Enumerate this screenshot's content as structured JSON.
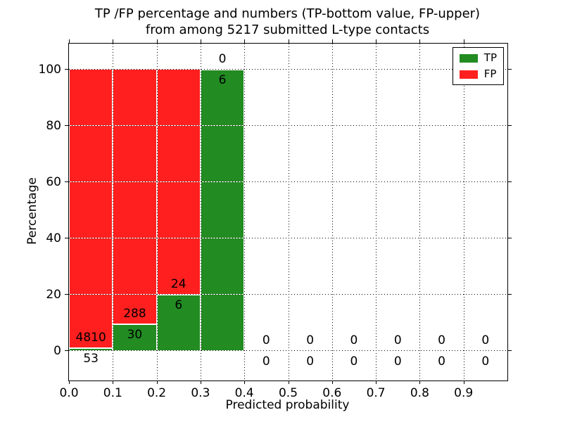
{
  "figure": {
    "title_line1": "TP /FP percentage and numbers (TP-bottom value, FP-upper)",
    "title_line2": "from among 5217 submitted L-type contacts"
  },
  "chart_data": {
    "type": "bar",
    "stacked": true,
    "title": "TP /FP percentage and numbers (TP-bottom value, FP-upper)\nfrom among 5217 submitted L-type contacts",
    "xlabel": "Predicted probability",
    "ylabel": "Percentage",
    "xlim": [
      0.0,
      1.0
    ],
    "ylim": [
      -10.5,
      109.5
    ],
    "x_ticks": [
      "0.0",
      "0.1",
      "0.2",
      "0.3",
      "0.4",
      "0.5",
      "0.6",
      "0.7",
      "0.8",
      "0.9"
    ],
    "y_ticks": [
      "0",
      "20",
      "40",
      "60",
      "80",
      "100"
    ],
    "grid": true,
    "grid_style": "dotted",
    "legend_position": "upper right",
    "total_contacts": 5217,
    "legend": [
      {
        "name": "TP",
        "label": "TP",
        "color": "#228b22"
      },
      {
        "name": "FP",
        "label": "FP",
        "color": "#ff1f1f"
      }
    ],
    "bins": [
      {
        "range": [
          0.0,
          0.1
        ],
        "tp_count": 53,
        "fp_count": 4810,
        "tp_pct": 1.09,
        "fp_pct": 98.91
      },
      {
        "range": [
          0.1,
          0.2
        ],
        "tp_count": 30,
        "fp_count": 288,
        "tp_pct": 9.43,
        "fp_pct": 90.57
      },
      {
        "range": [
          0.2,
          0.3
        ],
        "tp_count": 6,
        "fp_count": 24,
        "tp_pct": 20.0,
        "fp_pct": 80.0
      },
      {
        "range": [
          0.3,
          0.4
        ],
        "tp_count": 6,
        "fp_count": 0,
        "tp_pct": 100.0,
        "fp_pct": 0.0
      },
      {
        "range": [
          0.4,
          0.5
        ],
        "tp_count": 0,
        "fp_count": 0,
        "tp_pct": 0.0,
        "fp_pct": 0.0
      },
      {
        "range": [
          0.5,
          0.6
        ],
        "tp_count": 0,
        "fp_count": 0,
        "tp_pct": 0.0,
        "fp_pct": 0.0
      },
      {
        "range": [
          0.6,
          0.7
        ],
        "tp_count": 0,
        "fp_count": 0,
        "tp_pct": 0.0,
        "fp_pct": 0.0
      },
      {
        "range": [
          0.7,
          0.8
        ],
        "tp_count": 0,
        "fp_count": 0,
        "tp_pct": 0.0,
        "fp_pct": 0.0
      },
      {
        "range": [
          0.8,
          0.9
        ],
        "tp_count": 0,
        "fp_count": 0,
        "tp_pct": 0.0,
        "fp_pct": 0.0
      },
      {
        "range": [
          0.9,
          1.0
        ],
        "tp_count": 0,
        "fp_count": 0,
        "tp_pct": 0.0,
        "fp_pct": 0.0
      }
    ],
    "colors": {
      "tp": "#228b22",
      "fp": "#ff1f1f",
      "grid": "#000000",
      "background": "#ffffff",
      "axis": "#000000"
    }
  }
}
